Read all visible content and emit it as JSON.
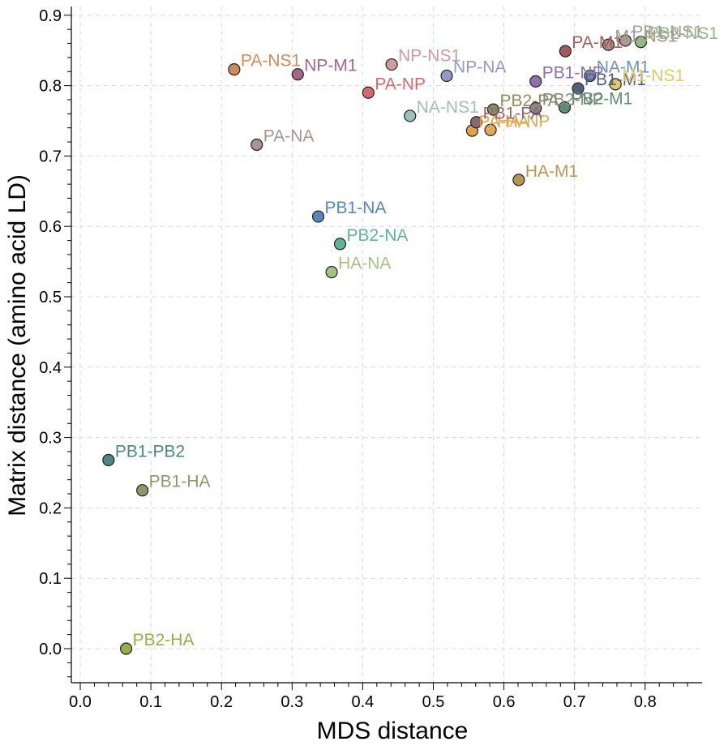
{
  "chart_data": {
    "type": "scatter",
    "title": "",
    "xlabel": "MDS distance",
    "ylabel": "Matrix distance (amino acid LD)",
    "xlim": [
      0.0,
      0.88
    ],
    "ylim": [
      -0.05,
      0.92
    ],
    "grid": true,
    "xticks": [
      "0.0",
      "0.1",
      "0.2",
      "0.3",
      "0.4",
      "0.5",
      "0.6",
      "0.7",
      "0.8"
    ],
    "yticks": [
      "0.0",
      "0.1",
      "0.2",
      "0.3",
      "0.4",
      "0.5",
      "0.6",
      "0.7",
      "0.8",
      "0.9"
    ],
    "points": [
      {
        "label": "PB2-HA",
        "x": 0.065,
        "y": 0.0,
        "color": "#93b04a"
      },
      {
        "label": "PB1-HA",
        "x": 0.088,
        "y": 0.225,
        "color": "#8f9668"
      },
      {
        "label": "PB1-PB2",
        "x": 0.04,
        "y": 0.268,
        "color": "#4e8680"
      },
      {
        "label": "HA-NA",
        "x": 0.356,
        "y": 0.535,
        "color": "#a6c183"
      },
      {
        "label": "PB2-NA",
        "x": 0.368,
        "y": 0.575,
        "color": "#5fb39b"
      },
      {
        "label": "PB1-NA",
        "x": 0.337,
        "y": 0.614,
        "color": "#5787b5"
      },
      {
        "label": "PA-NA",
        "x": 0.25,
        "y": 0.716,
        "color": "#a49592"
      },
      {
        "label": "PA-NS1",
        "x": 0.218,
        "y": 0.823,
        "color": "#cf8b59"
      },
      {
        "label": "NP-M1",
        "x": 0.308,
        "y": 0.816,
        "color": "#a0698a"
      },
      {
        "label": "PA-NP",
        "x": 0.408,
        "y": 0.79,
        "color": "#d3696f"
      },
      {
        "label": "NP-NS1",
        "x": 0.441,
        "y": 0.83,
        "color": "#ce9ba0"
      },
      {
        "label": "NA-NS1",
        "x": 0.467,
        "y": 0.757,
        "color": "#9dbfb5"
      },
      {
        "label": "NP-NA",
        "x": 0.519,
        "y": 0.814,
        "color": "#9799c5"
      },
      {
        "label": "HA-M1",
        "x": 0.621,
        "y": 0.666,
        "color": "#b59952"
      },
      {
        "label": "PA-HA",
        "x": 0.555,
        "y": 0.736,
        "color": "#e2a24a"
      },
      {
        "label": "HA-NP",
        "x": 0.581,
        "y": 0.737,
        "color": "#e4aa59"
      },
      {
        "label": "PB1-PA",
        "x": 0.561,
        "y": 0.748,
        "color": "#8a6872"
      },
      {
        "label": "PB2-PA",
        "x": 0.585,
        "y": 0.766,
        "color": "#8f8c5e"
      },
      {
        "label": "PB2-NP",
        "x": 0.645,
        "y": 0.768,
        "color": "#8a8a7f"
      },
      {
        "label": "PB2-M1",
        "x": 0.686,
        "y": 0.769,
        "color": "#5f8a73"
      },
      {
        "label": "PB1-NP",
        "x": 0.645,
        "y": 0.806,
        "color": "#8c72ac"
      },
      {
        "label": "PB1-M1",
        "x": 0.705,
        "y": 0.796,
        "color": "#54607b"
      },
      {
        "label": "NA-M1",
        "x": 0.722,
        "y": 0.814,
        "color": "#6e92b4"
      },
      {
        "label": "M1-NS1",
        "x": 0.758,
        "y": 0.802,
        "color": "#e1c96a"
      },
      {
        "label": "PA-M1",
        "x": 0.687,
        "y": 0.849,
        "color": "#a4595c"
      },
      {
        "label": "M1-NS1",
        "x": 0.748,
        "y": 0.858,
        "color": "#a9948b"
      },
      {
        "label": "PB1-NS1",
        "x": 0.772,
        "y": 0.864,
        "color": "#a79e98"
      },
      {
        "label": "PB2-NS1",
        "x": 0.794,
        "y": 0.862,
        "color": "#8fba86"
      }
    ]
  }
}
